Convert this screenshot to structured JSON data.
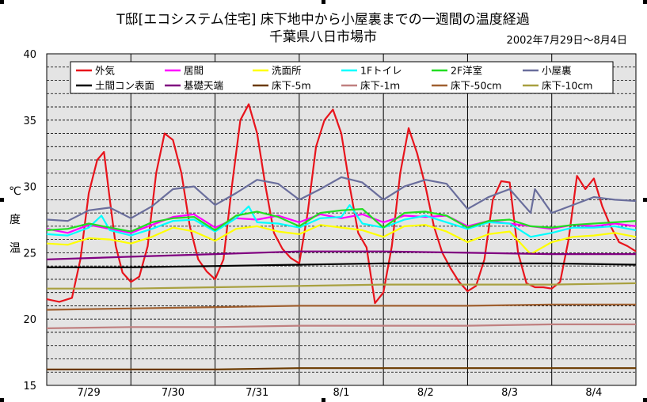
{
  "title_line1": "T邸[エコシステム住宅]  床下地中から小屋裏までの一週間の温度経過",
  "title_line2": "千葉県八日市場市",
  "date_range": "2002年7月29日～8月4日",
  "ylabel_chars": [
    "温",
    "度",
    "℃"
  ],
  "colors": {
    "plot_bg": "#e4e4e4",
    "grid": "#000000"
  },
  "chart_data": {
    "type": "line",
    "title": "T邸[エコシステム住宅]  床下地中から小屋裏までの一週間の温度経過",
    "ylabel": "温度℃",
    "ylim": [
      15,
      40
    ],
    "yticks": [
      15,
      20,
      25,
      30,
      35,
      40
    ],
    "xlim": [
      0,
      7
    ],
    "categories": [
      "7/29",
      "7/30",
      "7/31",
      "8/1",
      "8/2",
      "8/3",
      "8/4"
    ],
    "grid": true,
    "legend_position": "top",
    "series": [
      {
        "name": "外気",
        "color": "#e8141c",
        "x": [
          0,
          0.15,
          0.3,
          0.4,
          0.5,
          0.6,
          0.68,
          0.75,
          0.82,
          0.9,
          1.0,
          1.1,
          1.2,
          1.3,
          1.4,
          1.5,
          1.6,
          1.7,
          1.8,
          1.9,
          2.0,
          2.1,
          2.2,
          2.3,
          2.4,
          2.5,
          2.6,
          2.7,
          2.8,
          2.9,
          3.0,
          3.1,
          3.2,
          3.3,
          3.4,
          3.5,
          3.6,
          3.7,
          3.8,
          3.9,
          4.0,
          4.1,
          4.2,
          4.3,
          4.4,
          4.5,
          4.6,
          4.7,
          4.8,
          4.9,
          5.0,
          5.1,
          5.2,
          5.3,
          5.4,
          5.5,
          5.6,
          5.7,
          5.8,
          5.9,
          6.0,
          6.1,
          6.2,
          6.3,
          6.4,
          6.5,
          6.6,
          6.7,
          6.8,
          6.9,
          7.0
        ],
        "y": [
          21.5,
          21.3,
          21.6,
          24.5,
          29.5,
          32.0,
          32.6,
          29.0,
          25.5,
          23.5,
          22.8,
          23.2,
          25.5,
          31.0,
          34.0,
          33.5,
          31.0,
          27.0,
          24.5,
          23.6,
          23.0,
          24.5,
          30.0,
          35.0,
          36.2,
          34.0,
          30.0,
          26.5,
          25.3,
          24.6,
          24.2,
          28.0,
          33.0,
          35.0,
          35.8,
          34.0,
          30.0,
          26.5,
          25.4,
          21.2,
          22.0,
          25.5,
          31.0,
          34.4,
          32.5,
          30.0,
          27.0,
          25.0,
          23.8,
          22.8,
          22.1,
          22.5,
          24.5,
          29.0,
          30.4,
          30.3,
          25.0,
          22.7,
          22.4,
          22.4,
          22.3,
          22.8,
          26.0,
          30.8,
          29.8,
          30.6,
          28.5,
          27.0,
          25.8,
          25.5,
          25.1
        ]
      },
      {
        "name": "居間",
        "color": "#ff00ff",
        "x": [
          0,
          0.25,
          0.5,
          0.75,
          1.0,
          1.25,
          1.5,
          1.75,
          2.0,
          2.25,
          2.5,
          2.75,
          3.0,
          3.25,
          3.5,
          3.75,
          4.0,
          4.25,
          4.5,
          4.75,
          5.0,
          5.25,
          5.5,
          5.75,
          6.0,
          6.25,
          6.5,
          6.75,
          7.0
        ],
        "y": [
          26.8,
          26.5,
          27.1,
          26.8,
          26.5,
          27.1,
          27.7,
          27.9,
          26.9,
          27.6,
          27.5,
          27.8,
          27.3,
          27.9,
          27.6,
          27.9,
          27.3,
          27.8,
          27.7,
          27.8,
          27.0,
          27.4,
          27.2,
          27.0,
          26.8,
          27.1,
          27.0,
          27.2,
          27.0
        ]
      },
      {
        "name": "洗面所",
        "color": "#ffff00",
        "x": [
          0,
          0.25,
          0.5,
          0.75,
          1.0,
          1.25,
          1.5,
          1.75,
          2.0,
          2.25,
          2.5,
          2.75,
          3.0,
          3.25,
          3.5,
          3.75,
          4.0,
          4.25,
          4.5,
          4.75,
          5.0,
          5.25,
          5.5,
          5.75,
          6.0,
          6.25,
          6.5,
          6.75,
          7.0
        ],
        "y": [
          25.7,
          25.6,
          26.1,
          26.0,
          25.7,
          26.2,
          26.9,
          26.6,
          25.9,
          26.8,
          27.0,
          26.6,
          26.4,
          27.1,
          26.9,
          26.7,
          26.2,
          27.0,
          27.1,
          26.6,
          25.8,
          26.4,
          26.6,
          24.9,
          25.8,
          26.2,
          26.3,
          26.5,
          26.2
        ]
      },
      {
        "name": "1Fトイレ",
        "color": "#00ffff",
        "x": [
          0,
          0.25,
          0.5,
          0.65,
          0.75,
          1.0,
          1.25,
          1.5,
          1.75,
          2.0,
          2.25,
          2.4,
          2.5,
          2.75,
          3.0,
          3.25,
          3.5,
          3.6,
          3.75,
          4.0,
          4.25,
          4.5,
          4.75,
          5.0,
          5.25,
          5.5,
          5.75,
          6.0,
          6.25,
          6.5,
          6.75,
          7.0
        ],
        "y": [
          26.4,
          26.3,
          26.9,
          27.8,
          26.7,
          26.3,
          26.8,
          27.4,
          27.5,
          26.6,
          27.6,
          28.5,
          27.3,
          27.2,
          26.9,
          27.6,
          27.7,
          28.6,
          27.2,
          26.9,
          27.5,
          27.8,
          27.3,
          26.8,
          27.3,
          27.2,
          26.2,
          26.5,
          26.9,
          26.9,
          27.0,
          26.7
        ]
      },
      {
        "name": "2F洋室",
        "color": "#22dd22",
        "x": [
          0,
          0.25,
          0.5,
          0.75,
          1.0,
          1.25,
          1.5,
          1.75,
          2.0,
          2.25,
          2.5,
          2.75,
          3.0,
          3.25,
          3.5,
          3.75,
          4.0,
          4.25,
          4.5,
          4.75,
          5.0,
          5.25,
          5.5,
          5.75,
          6.0,
          6.25,
          6.5,
          6.75,
          7.0
        ],
        "y": [
          26.7,
          26.8,
          27.2,
          26.9,
          26.6,
          27.3,
          27.6,
          27.7,
          26.7,
          27.8,
          28.1,
          27.7,
          27.0,
          28.0,
          28.2,
          28.3,
          26.9,
          28.0,
          28.1,
          27.8,
          26.9,
          27.4,
          27.5,
          27.0,
          26.9,
          27.1,
          27.2,
          27.3,
          27.4
        ]
      },
      {
        "name": "小屋裏",
        "color": "#6a6e9c",
        "x": [
          0,
          0.25,
          0.5,
          0.75,
          1.0,
          1.25,
          1.5,
          1.75,
          2.0,
          2.25,
          2.5,
          2.75,
          3.0,
          3.25,
          3.5,
          3.75,
          4.0,
          4.25,
          4.5,
          4.75,
          5.0,
          5.25,
          5.5,
          5.75,
          5.8,
          6.0,
          6.25,
          6.5,
          6.75,
          7.0
        ],
        "y": [
          27.5,
          27.4,
          28.2,
          28.4,
          27.6,
          28.5,
          29.8,
          30.0,
          28.6,
          29.5,
          30.5,
          30.2,
          29.0,
          29.8,
          30.7,
          30.3,
          29.0,
          30.0,
          30.5,
          30.2,
          28.3,
          29.2,
          29.8,
          28.0,
          29.8,
          28.0,
          28.6,
          29.2,
          29.0,
          28.9
        ]
      },
      {
        "name": "土間コン表面",
        "color": "#000000",
        "x": [
          0,
          1,
          2,
          3,
          4,
          5,
          6,
          7
        ],
        "y": [
          23.9,
          23.9,
          24.0,
          24.1,
          24.2,
          24.2,
          24.2,
          24.1
        ]
      },
      {
        "name": "基礎天端",
        "color": "#800080",
        "x": [
          0,
          1,
          2,
          3,
          4,
          5,
          6,
          7
        ],
        "y": [
          24.5,
          24.7,
          24.9,
          25.1,
          25.1,
          25.0,
          24.9,
          24.9
        ]
      },
      {
        "name": "床下-5m",
        "color": "#6b3a00",
        "x": [
          0,
          1,
          2,
          3,
          4,
          5,
          6,
          7
        ],
        "y": [
          16.2,
          16.2,
          16.2,
          16.3,
          16.3,
          16.3,
          16.3,
          16.3
        ]
      },
      {
        "name": "床下-1ｍ",
        "color": "#c08080",
        "x": [
          0,
          1,
          2,
          3,
          4,
          5,
          6,
          7
        ],
        "y": [
          19.3,
          19.4,
          19.4,
          19.5,
          19.5,
          19.5,
          19.6,
          19.6
        ]
      },
      {
        "name": "床下-50cm",
        "color": "#a06030",
        "x": [
          0,
          1,
          2,
          3,
          4,
          5,
          6,
          7
        ],
        "y": [
          20.7,
          20.8,
          20.9,
          21.0,
          21.0,
          21.0,
          21.1,
          21.1
        ]
      },
      {
        "name": "床下-10cm",
        "color": "#a8a040",
        "x": [
          0,
          1,
          2,
          3,
          4,
          5,
          6,
          7
        ],
        "y": [
          22.3,
          22.3,
          22.4,
          22.5,
          22.6,
          22.6,
          22.6,
          22.7
        ]
      }
    ]
  }
}
